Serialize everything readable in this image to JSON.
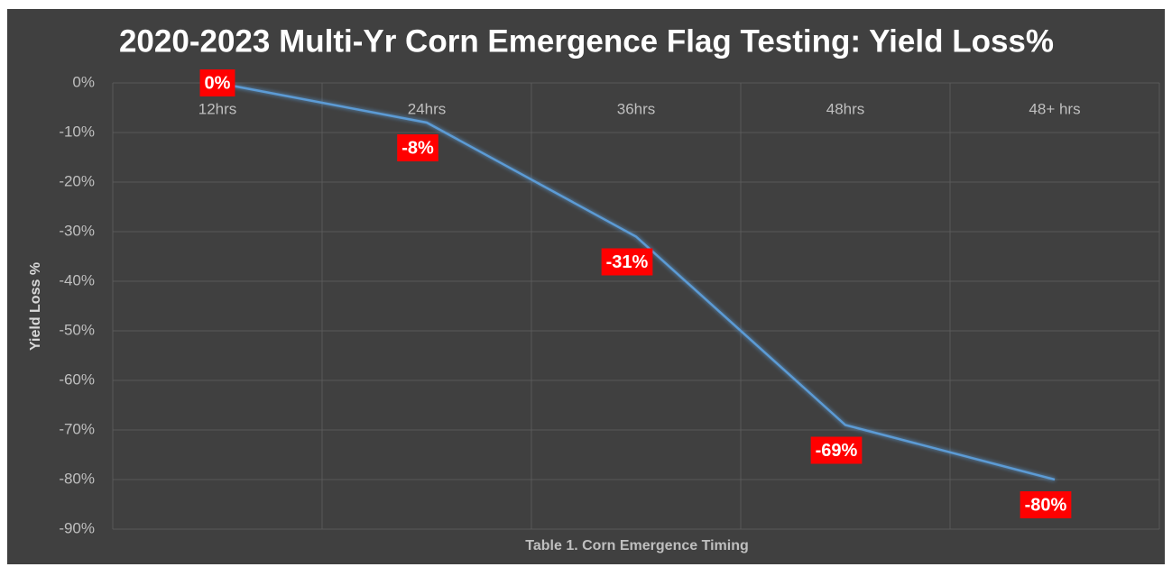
{
  "chart_data": {
    "type": "line",
    "title": "2020-2023 Multi-Yr Corn Emergence Flag Testing: Yield Loss%",
    "x_label": "Table 1. Corn Emergence Timing",
    "y_label": "Yield Loss %",
    "categories": [
      "12hrs",
      "24hrs",
      "36hrs",
      "48hrs",
      "48+ hrs"
    ],
    "series": [
      {
        "name": "Yield Loss %",
        "color": "#5b9bd5",
        "values": [
          0,
          -8,
          -31,
          -69,
          -80
        ],
        "value_labels": [
          "0%",
          "-8%",
          "-31%",
          "-69%",
          "-80%"
        ]
      }
    ],
    "ylim": [
      -90,
      0
    ],
    "yticks": [
      {
        "value": 0,
        "label": "0%"
      },
      {
        "value": -10,
        "label": "-10%"
      },
      {
        "value": -20,
        "label": "-20%"
      },
      {
        "value": -30,
        "label": "-30%"
      },
      {
        "value": -40,
        "label": "-40%"
      },
      {
        "value": -50,
        "label": "-50%"
      },
      {
        "value": -60,
        "label": "-60%"
      },
      {
        "value": -70,
        "label": "-70%"
      },
      {
        "value": -80,
        "label": "-80%"
      },
      {
        "value": -90,
        "label": "-90%"
      }
    ],
    "grid": true,
    "label_color": "#ff0000"
  }
}
